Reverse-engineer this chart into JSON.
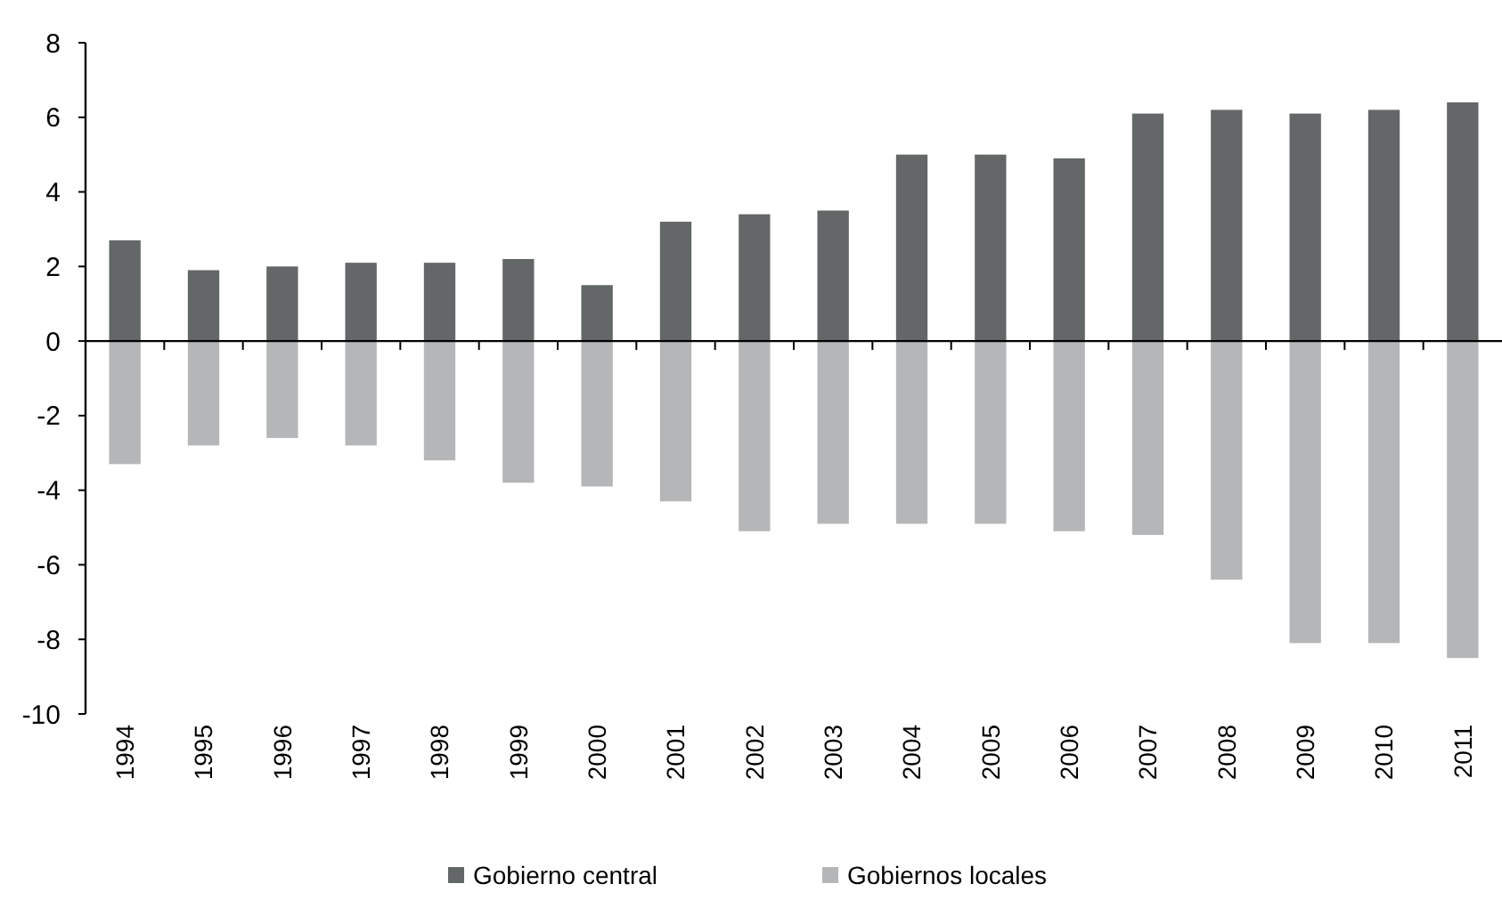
{
  "chart_data": {
    "type": "bar",
    "stacked": true,
    "categories": [
      "1994",
      "1995",
      "1996",
      "1997",
      "1998",
      "1999",
      "2000",
      "2001",
      "2002",
      "2003",
      "2004",
      "2005",
      "2006",
      "2007",
      "2008",
      "2009",
      "2010",
      "2011"
    ],
    "series": [
      {
        "name": "Gobierno central",
        "color": "#636767",
        "values": [
          2.7,
          1.9,
          2.0,
          2.1,
          2.1,
          2.2,
          1.5,
          3.2,
          3.4,
          3.5,
          5.0,
          5.0,
          4.9,
          6.1,
          6.2,
          6.1,
          6.2,
          6.4
        ]
      },
      {
        "name": "Gobiernos locales",
        "color": "#b5b6b8",
        "values": [
          -3.3,
          -2.8,
          -2.6,
          -2.8,
          -3.2,
          -3.8,
          -3.9,
          -4.3,
          -5.1,
          -4.9,
          -4.9,
          -4.9,
          -5.1,
          -5.2,
          -6.4,
          -8.1,
          -8.1,
          -8.5
        ]
      }
    ],
    "ylim": [
      -10,
      8
    ],
    "yticks": [
      -10,
      -8,
      -6,
      -4,
      -2,
      0,
      2,
      4,
      6,
      8
    ],
    "legend": "bottom"
  }
}
